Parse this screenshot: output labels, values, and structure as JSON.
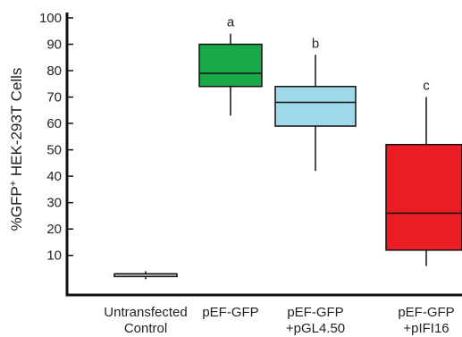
{
  "chart_data": {
    "type": "box",
    "title": "",
    "xlabel": "",
    "ylabel": {
      "prefix": "%GFP",
      "superscript": "+",
      "suffix": " HEK-293T Cells"
    },
    "ylim": [
      -5,
      100
    ],
    "yticks": [
      10,
      20,
      30,
      40,
      50,
      60,
      70,
      80,
      90,
      100
    ],
    "grid": false,
    "legend": "none",
    "categories": [
      [
        "Untransfected",
        "Control"
      ],
      [
        "pEF-GFP"
      ],
      [
        "pEF-GFP",
        "+pGL4.50"
      ],
      [
        "pEF-GFP",
        "+pIFI16"
      ]
    ],
    "boxes": [
      {
        "whisker_low": 1,
        "q1": 2,
        "median": 3,
        "q3": 3,
        "whisker_high": 4,
        "color": "#e6e6e6",
        "significance": ""
      },
      {
        "whisker_low": 63,
        "q1": 74,
        "median": 79,
        "q3": 90,
        "whisker_high": 94,
        "color": "#1aa84a",
        "significance": "a"
      },
      {
        "whisker_low": 42,
        "q1": 59,
        "median": 68,
        "q3": 74,
        "whisker_high": 86,
        "color": "#9fd9ea",
        "significance": "b"
      },
      {
        "whisker_low": 6,
        "q1": 12,
        "median": 26,
        "q3": 52,
        "whisker_high": 70,
        "color": "#ec1c24",
        "significance": "c"
      }
    ]
  }
}
